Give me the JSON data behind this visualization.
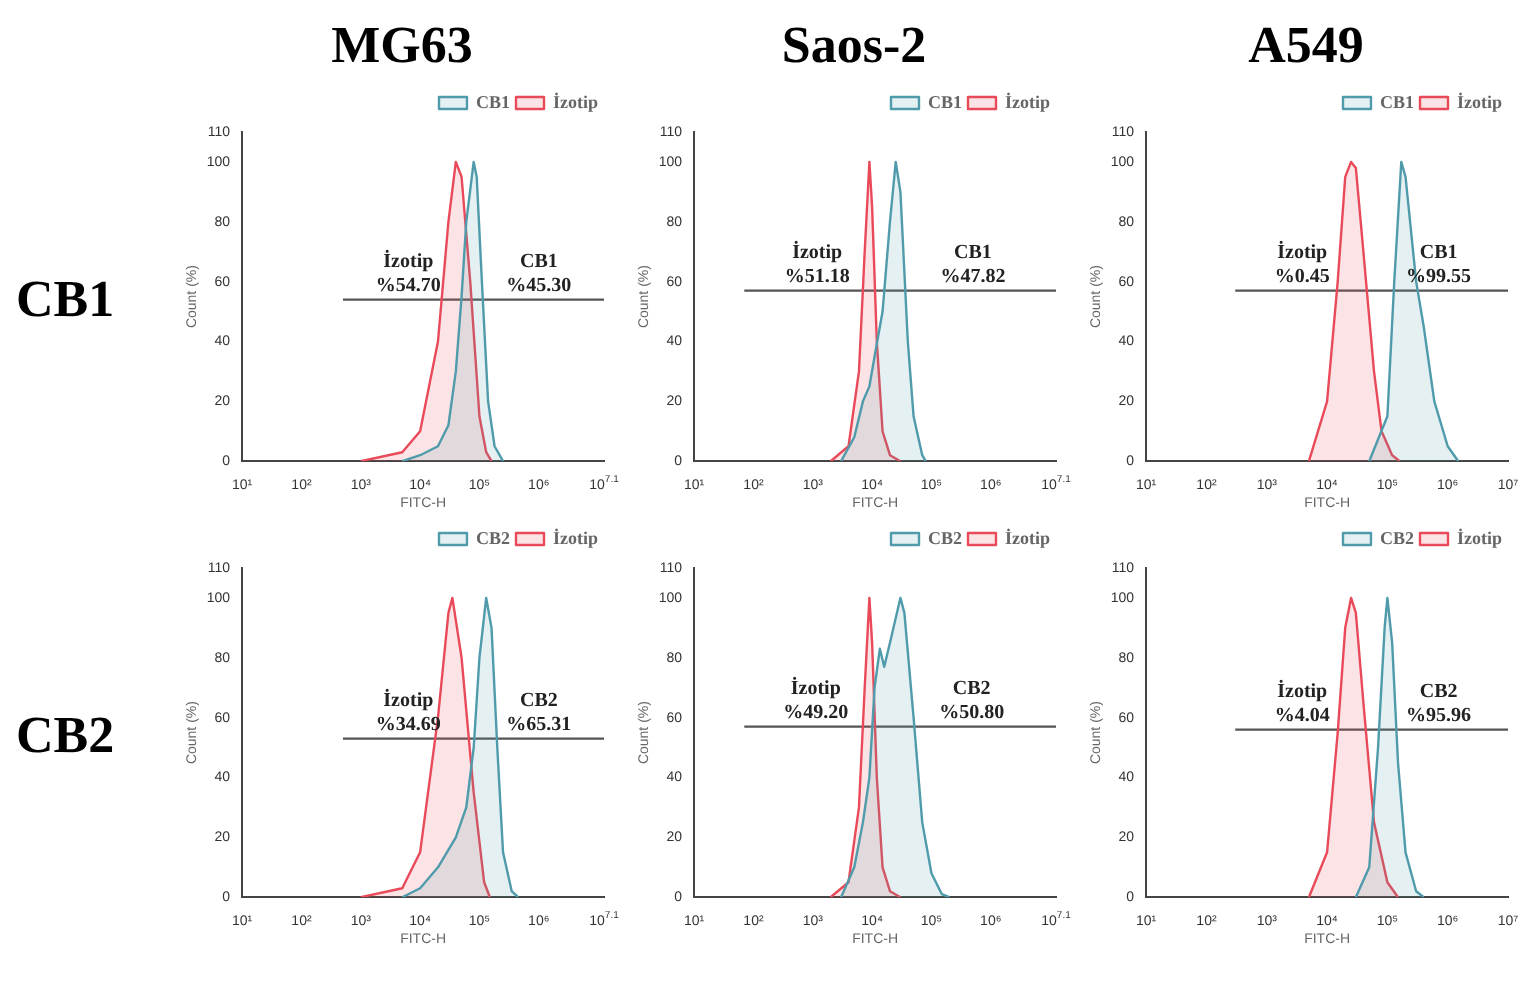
{
  "chart_data": [
    {
      "type": "area",
      "title": "MG63",
      "subtitle": "CB1",
      "annotations": [
        "İzotip\n%54.70",
        "CB1\n%45.30"
      ],
      "xlabel": "FITC-H",
      "ylabel": "Count (%)",
      "xlim": [
        10,
        12589254
      ],
      "xticks": [
        {
          "value": 10,
          "label": "10¹"
        },
        {
          "value": 100,
          "label": "10²"
        },
        {
          "value": 1000,
          "label": "10³"
        },
        {
          "value": 10000,
          "label": "10⁴"
        },
        {
          "value": 100000,
          "label": "10⁵"
        },
        {
          "value": 1000000,
          "label": "10⁶"
        },
        {
          "value": 12589254,
          "label": "10$^{7.1}$"
        }
      ],
      "ylim": [
        0,
        110
      ],
      "yticks": [
        0,
        20,
        40,
        60,
        80,
        100,
        110
      ],
      "log": "x",
      "legend": "top right",
      "grid": false,
      "series": [
        {
          "name": "CB1",
          "type": "area",
          "color": "#4f9bab",
          "x": [
            5000,
            10000,
            20000,
            30000,
            40000,
            50000,
            60000,
            80000,
            90000,
            110000,
            140000,
            180000,
            250000
          ],
          "values": [
            0,
            2,
            5,
            12,
            30,
            55,
            80,
            100,
            95,
            60,
            20,
            5,
            0
          ]
        },
        {
          "name": "İzotip",
          "type": "area",
          "color": "#e84a5a",
          "x": [
            1000,
            5000,
            10000,
            20000,
            30000,
            40000,
            50000,
            70000,
            100000,
            130000,
            160000
          ],
          "values": [
            0,
            3,
            10,
            40,
            80,
            100,
            95,
            60,
            15,
            3,
            0
          ]
        },
        {
          "type": "line",
          "color": "#555555",
          "x": [
            500,
            80000,
            12589254
          ],
          "values": [
            54,
            54,
            54
          ]
        }
      ]
    },
    {
      "type": "area",
      "title": "Saos-2",
      "annotations": [
        "İzotip\n%51.18",
        "CB1\n%47.82"
      ],
      "xlabel": "FITC-H",
      "ylabel": "Count (%)",
      "xlim": [
        10,
        12589254
      ],
      "xticks": [
        {
          "value": 10,
          "label": "10¹"
        },
        {
          "value": 100,
          "label": "10²"
        },
        {
          "value": 1000,
          "label": "10³"
        },
        {
          "value": 10000,
          "label": "10⁴"
        },
        {
          "value": 100000,
          "label": "10⁵"
        },
        {
          "value": 1000000,
          "label": "10⁶"
        },
        {
          "value": 12589254,
          "label": "10$^{7.1}$"
        }
      ],
      "ylim": [
        0,
        110
      ],
      "yticks": [
        0,
        20,
        40,
        60,
        80,
        100,
        110
      ],
      "log": "x",
      "legend": "top right",
      "grid": false,
      "series": [
        {
          "name": "CB1",
          "type": "area",
          "color": "#4f9bab",
          "x": [
            3000,
            5000,
            7000,
            9000,
            11000,
            15000,
            20000,
            25000,
            30000,
            40000,
            50000,
            70000,
            80000
          ],
          "values": [
            0,
            8,
            20,
            25,
            35,
            50,
            80,
            100,
            90,
            40,
            15,
            2,
            0
          ]
        },
        {
          "name": "İzotip",
          "type": "area",
          "color": "#e84a5a",
          "x": [
            2000,
            4000,
            6000,
            7500,
            9000,
            10000,
            12000,
            15000,
            20000,
            30000
          ],
          "values": [
            0,
            5,
            30,
            70,
            100,
            85,
            40,
            10,
            2,
            0
          ]
        },
        {
          "type": "line",
          "color": "#555555",
          "x": [
            70,
            20000,
            12589254
          ],
          "values": [
            57,
            57,
            57
          ]
        }
      ]
    },
    {
      "type": "area",
      "title": "A549",
      "annotations": [
        "İzotip\n%0.45",
        "CB1\n%99.55"
      ],
      "xlabel": "FITC-H",
      "ylabel": "Count (%)",
      "xlim": [
        10,
        10000000
      ],
      "xticks": [
        {
          "value": 10,
          "label": "10¹"
        },
        {
          "value": 100,
          "label": "10²"
        },
        {
          "value": 1000,
          "label": "10³"
        },
        {
          "value": 10000,
          "label": "10⁴"
        },
        {
          "value": 100000,
          "label": "10⁵"
        },
        {
          "value": 1000000,
          "label": "10⁶"
        },
        {
          "value": 10000000,
          "label": "10⁷"
        }
      ],
      "ylim": [
        0,
        110
      ],
      "yticks": [
        0,
        20,
        40,
        60,
        80,
        100,
        110
      ],
      "log": "x",
      "legend": "top right",
      "grid": false,
      "series": [
        {
          "name": "CB1",
          "type": "area",
          "color": "#4f9bab",
          "x": [
            50000,
            100000,
            130000,
            170000,
            200000,
            300000,
            400000,
            600000,
            1000000,
            1500000
          ],
          "values": [
            0,
            15,
            60,
            100,
            95,
            60,
            45,
            20,
            5,
            0
          ]
        },
        {
          "name": "İzotip",
          "type": "area",
          "color": "#e84a5a",
          "x": [
            5000,
            10000,
            15000,
            20000,
            25000,
            30000,
            40000,
            60000,
            80000,
            120000,
            160000
          ],
          "values": [
            0,
            20,
            60,
            95,
            100,
            98,
            70,
            30,
            10,
            2,
            0
          ]
        },
        {
          "type": "line",
          "color": "#555555",
          "x": [
            300,
            50000,
            10000000
          ],
          "values": [
            57,
            57,
            57
          ]
        }
      ]
    },
    {
      "type": "area",
      "subtitle": "CB2",
      "annotations": [
        "İzotip\n%34.69",
        "CB2\n%65.31"
      ],
      "xlabel": "FITC-H",
      "ylabel": "Count (%)",
      "xlim": [
        10,
        12589254
      ],
      "xticks": [
        {
          "value": 10,
          "label": "10¹"
        },
        {
          "value": 100,
          "label": "10²"
        },
        {
          "value": 1000,
          "label": "10³"
        },
        {
          "value": 10000,
          "label": "10⁴"
        },
        {
          "value": 100000,
          "label": "10⁵"
        },
        {
          "value": 1000000,
          "label": "10⁶"
        },
        {
          "value": 12589254,
          "label": "10$^{7.1}$"
        }
      ],
      "ylim": [
        0,
        110
      ],
      "yticks": [
        0,
        20,
        40,
        60,
        80,
        100,
        110
      ],
      "log": "x",
      "legend": "top right",
      "grid": false,
      "series": [
        {
          "name": "CB2",
          "type": "area",
          "color": "#4f9bab",
          "x": [
            5000,
            10000,
            20000,
            40000,
            60000,
            80000,
            100000,
            130000,
            160000,
            200000,
            250000,
            350000,
            450000
          ],
          "values": [
            0,
            3,
            10,
            20,
            30,
            50,
            80,
            100,
            90,
            50,
            15,
            2,
            0
          ]
        },
        {
          "name": "İzotip",
          "type": "area",
          "color": "#e84a5a",
          "x": [
            1000,
            5000,
            10000,
            20000,
            30000,
            35000,
            50000,
            80000,
            120000,
            150000
          ],
          "values": [
            0,
            3,
            15,
            60,
            95,
            100,
            80,
            35,
            5,
            0
          ]
        },
        {
          "type": "line",
          "color": "#555555",
          "x": [
            500,
            80000,
            12589254
          ],
          "values": [
            53,
            53,
            53
          ]
        }
      ]
    },
    {
      "type": "area",
      "annotations": [
        "İzotip\n%49.20",
        "CB2\n%50.80"
      ],
      "xlabel": "FITC-H",
      "ylabel": "Count (%)",
      "xlim": [
        10,
        12589254
      ],
      "xticks": [
        {
          "value": 10,
          "label": "10¹"
        },
        {
          "value": 100,
          "label": "10²"
        },
        {
          "value": 1000,
          "label": "10³"
        },
        {
          "value": 10000,
          "label": "10⁴"
        },
        {
          "value": 100000,
          "label": "10⁵"
        },
        {
          "value": 1000000,
          "label": "10⁶"
        },
        {
          "value": 12589254,
          "label": "10$^{7.1}$"
        }
      ],
      "ylim": [
        0,
        110
      ],
      "yticks": [
        0,
        20,
        40,
        60,
        80,
        100,
        110
      ],
      "log": "x",
      "legend": "top right",
      "grid": false,
      "series": [
        {
          "name": "CB2",
          "type": "area",
          "color": "#4f9bab",
          "x": [
            3000,
            5000,
            7000,
            9000,
            11000,
            13500,
            16000,
            20000,
            30000,
            35000,
            50000,
            70000,
            100000,
            150000,
            200000
          ],
          "values": [
            0,
            10,
            25,
            40,
            70,
            83,
            77,
            85,
            100,
            95,
            60,
            25,
            8,
            1,
            0
          ]
        },
        {
          "name": "İzotip",
          "type": "area",
          "color": "#e84a5a",
          "x": [
            2000,
            4000,
            6000,
            7500,
            9000,
            10000,
            12000,
            15000,
            20000,
            30000
          ],
          "values": [
            0,
            5,
            30,
            70,
            100,
            85,
            40,
            10,
            2,
            0
          ]
        },
        {
          "type": "line",
          "color": "#555555",
          "x": [
            70,
            18000,
            12589254
          ],
          "values": [
            57,
            57,
            57
          ]
        }
      ]
    },
    {
      "type": "area",
      "annotations": [
        "İzotip\n%4.04",
        "CB2\n%95.96"
      ],
      "xlabel": "FITC-H",
      "ylabel": "Count (%)",
      "xlim": [
        10,
        10000000
      ],
      "xticks": [
        {
          "value": 10,
          "label": "10¹"
        },
        {
          "value": 100,
          "label": "10²"
        },
        {
          "value": 1000,
          "label": "10³"
        },
        {
          "value": 10000,
          "label": "10⁴"
        },
        {
          "value": 100000,
          "label": "10⁵"
        },
        {
          "value": 1000000,
          "label": "10⁶"
        },
        {
          "value": 10000000,
          "label": "10⁷"
        }
      ],
      "ylim": [
        0,
        110
      ],
      "yticks": [
        0,
        20,
        40,
        60,
        80,
        100,
        110
      ],
      "log": "x",
      "legend": "top right",
      "grid": false,
      "series": [
        {
          "name": "CB2",
          "type": "area",
          "color": "#4f9bab",
          "x": [
            30000,
            50000,
            70000,
            90000,
            100000,
            120000,
            150000,
            200000,
            300000,
            400000
          ],
          "values": [
            0,
            10,
            50,
            90,
            100,
            85,
            45,
            15,
            2,
            0
          ]
        },
        {
          "name": "İzotip",
          "type": "area",
          "color": "#e84a5a",
          "x": [
            5000,
            10000,
            15000,
            20000,
            25000,
            30000,
            40000,
            60000,
            100000,
            150000
          ],
          "values": [
            0,
            15,
            55,
            90,
            100,
            95,
            65,
            25,
            5,
            0
          ]
        },
        {
          "type": "line",
          "color": "#555555",
          "x": [
            300,
            50000,
            10000000
          ],
          "values": [
            56,
            56,
            56
          ]
        }
      ]
    }
  ]
}
